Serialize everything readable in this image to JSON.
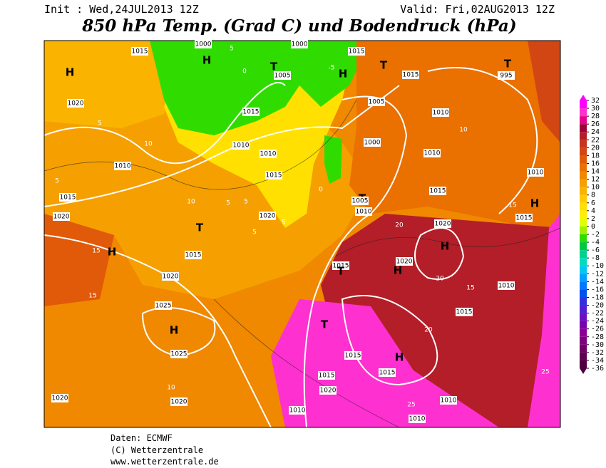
{
  "header": {
    "init": "Init : Wed,24JUL2013 12Z",
    "valid": "Valid: Fri,02AUG2013 12Z",
    "title": "850 hPa Temp. (Grad C) und Bodendruck (hPa)"
  },
  "colorbar": {
    "ticks": [
      32,
      30,
      28,
      26,
      24,
      22,
      20,
      18,
      16,
      14,
      12,
      10,
      8,
      6,
      4,
      2,
      0,
      -2,
      -4,
      -6,
      -8,
      -10,
      -12,
      -14,
      -16,
      -18,
      -20,
      -22,
      -24,
      -26,
      -28,
      -30,
      -32,
      -34,
      -36
    ],
    "colors": [
      "#ff00ff",
      "#ff30d0",
      "#e6008c",
      "#a0003c",
      "#b41e28",
      "#c8321e",
      "#d24614",
      "#e05a0a",
      "#ea7000",
      "#f08800",
      "#f5a000",
      "#fab400",
      "#ffcc00",
      "#ffe000",
      "#fff000",
      "#e0ff00",
      "#a0f000",
      "#30dc00",
      "#00c840",
      "#00d28c",
      "#00dcc0",
      "#00c8f0",
      "#00a0ff",
      "#0078ff",
      "#0050f0",
      "#3030e0",
      "#5020d0",
      "#6a10c0",
      "#7d00b0",
      "#8c0096",
      "#80007d",
      "#700066",
      "#600052",
      "#500040"
    ]
  },
  "map_labels": [
    "H",
    "1020",
    "5",
    "10",
    "1010",
    "5",
    "1015",
    "1020",
    "10",
    "T",
    "5",
    "5",
    "1020",
    "5",
    "5",
    "1015",
    "15",
    "H",
    "1020",
    "15",
    "1025",
    "H",
    "1025",
    "10",
    "1020",
    "1020",
    "1015",
    "H",
    "1000",
    "5",
    "0",
    "1005",
    "T",
    "1000",
    "1015",
    "H",
    "-5",
    "1015",
    "1010",
    "1010",
    "1015",
    "0",
    "T",
    "1005",
    "1010",
    "1005",
    "1000",
    "T",
    "1015",
    "1010",
    "10",
    "995",
    "T",
    "1010",
    "1010",
    "1015",
    "20",
    "1020",
    "H",
    "1020",
    "H",
    "1015",
    "T",
    "20",
    "15",
    "1010",
    "1015",
    "20",
    "T",
    "H",
    "1015",
    "1015",
    "1015",
    "1020",
    "25",
    "1010",
    "1010",
    "25",
    "1010",
    "15",
    "1015",
    "H"
  ],
  "footer": [
    "Daten: ECMWF",
    "(C) Wetterzentrale",
    "www.wetterzentrale.de"
  ]
}
